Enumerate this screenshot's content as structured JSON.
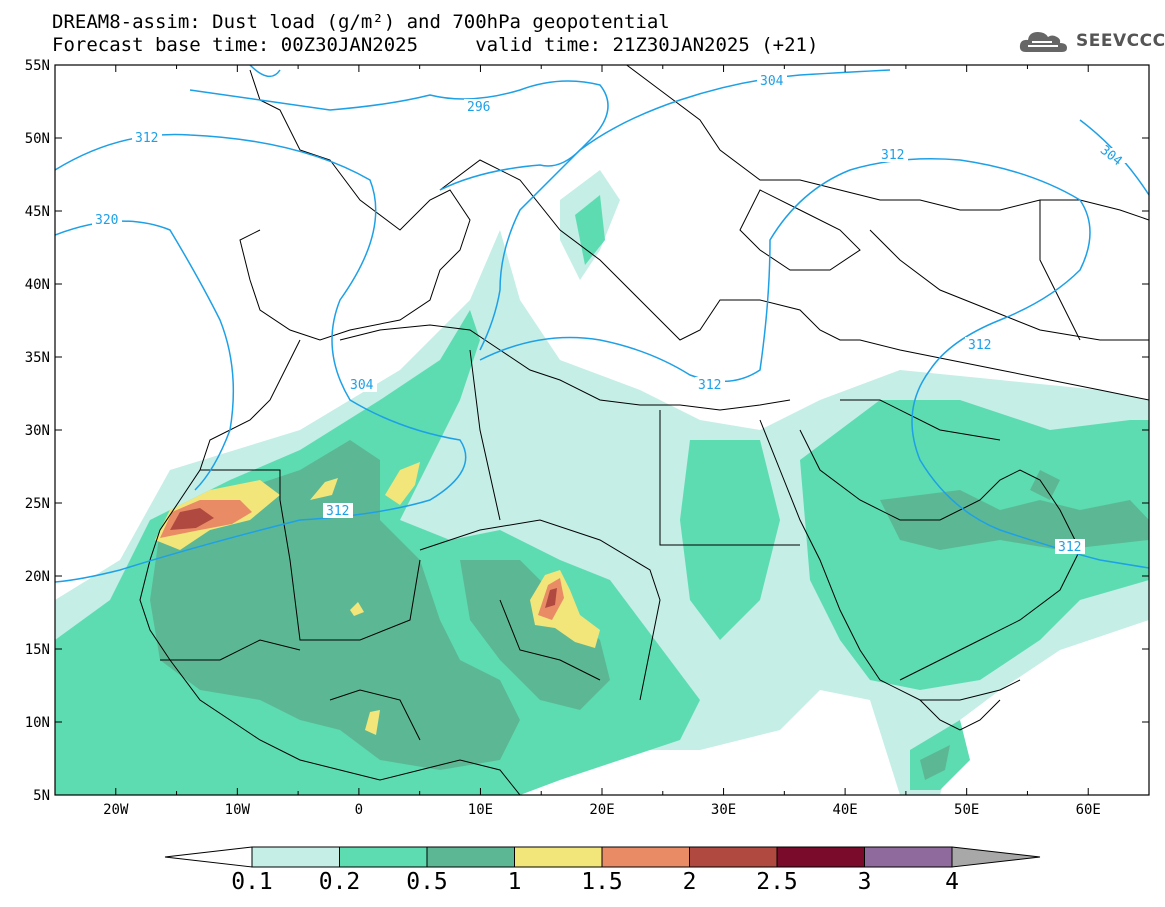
{
  "title": {
    "line1": "DREAM8-assim: Dust load (g/m²) and 700hPa geopotential",
    "line2": "Forecast base time: 00Z30JAN2025     valid time: 21Z30JAN2025 (+21)"
  },
  "logo": {
    "text": "SEEVCCC",
    "icon": "cloud-logo-icon"
  },
  "axes": {
    "lon_labels": [
      "20W",
      "10W",
      "0",
      "10E",
      "20E",
      "30E",
      "40E",
      "50E",
      "60E"
    ],
    "lat_labels": [
      "55N",
      "50N",
      "45N",
      "40N",
      "35N",
      "30N",
      "25N",
      "20N",
      "15N",
      "10N",
      "5N"
    ],
    "lon_range": [
      -25,
      65
    ],
    "lat_range": [
      5,
      55
    ]
  },
  "contours": {
    "color": "#1ea0e6",
    "labels": [
      "312",
      "320",
      "304",
      "296",
      "312",
      "304",
      "312",
      "304",
      "312",
      "312",
      "312"
    ]
  },
  "colorbar": {
    "labels": [
      "0.1",
      "0.2",
      "0.5",
      "1",
      "1.5",
      "2",
      "2.5",
      "3",
      "4"
    ],
    "colors": [
      "#c4eee6",
      "#5ddcb2",
      "#5cb894",
      "#f2e67a",
      "#e98c66",
      "#b04a40",
      "#7a0b2a",
      "#8f6a9c",
      "#a8a8a8"
    ],
    "under_color": "#ffffff",
    "over_color": "#a8a8a8"
  },
  "dust_colors": {
    "level1": "#c4eee6",
    "level2": "#5ddcb2",
    "level3": "#5cb894",
    "level4": "#f2e67a",
    "level5": "#e98c66",
    "level6": "#b04a40"
  }
}
